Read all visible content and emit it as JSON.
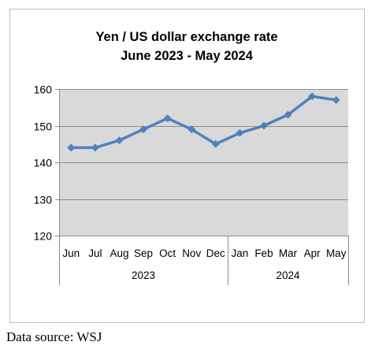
{
  "chart_data": {
    "type": "line",
    "title": "Yen / US dollar exchange rate",
    "subtitle": "June 2023 - May 2024",
    "categories": [
      "Jun",
      "Jul",
      "Aug",
      "Sep",
      "Oct",
      "Nov",
      "Dec",
      "Jan",
      "Feb",
      "Mar",
      "Apr",
      "May"
    ],
    "groups": [
      {
        "label": "2023",
        "count": 7
      },
      {
        "label": "2024",
        "count": 5
      }
    ],
    "series": [
      {
        "values": [
          144,
          144,
          146,
          149,
          152,
          149,
          145,
          148,
          150,
          153,
          158,
          157
        ]
      }
    ],
    "ylim": [
      120,
      160
    ],
    "yticks": [
      120,
      130,
      140,
      150,
      160
    ],
    "grid": true,
    "legend": "none",
    "colors": {
      "line": "#4F81BD",
      "plot_background": "#D9D9D9",
      "frame": "#BFBFBF",
      "gridline": "#8C8C8C"
    }
  },
  "source_text": "Data source: WSJ"
}
